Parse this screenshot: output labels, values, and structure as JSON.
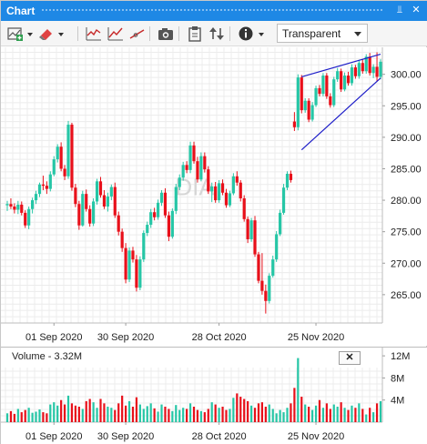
{
  "window": {
    "title": "Chart",
    "pin_glyph": "⫫",
    "close_glyph": "✕"
  },
  "toolbar": {
    "icons": [
      "add-indicator-icon",
      "eraser-icon",
      "line-chart-icon",
      "trend-chart-icon",
      "draw-line-icon",
      "camera-icon",
      "clipboard-icon",
      "sort-arrows-icon",
      "info-icon"
    ],
    "theme_select": "Transparent"
  },
  "volume_pane": {
    "label": "Volume - 3.32M",
    "close_glyph": "✕"
  },
  "watermark": "DIA",
  "colors": {
    "up": "#26c6a6",
    "down": "#e8101a",
    "trendline": "#1e1ec8",
    "titlebar": "#1e88e5"
  },
  "chart_data": [
    {
      "type": "candlestick",
      "symbol_watermark": "DIA",
      "x_tick_labels": [
        "01 Sep 2020",
        "30 Sep 2020",
        "28 Oct 2020",
        "25 Nov 2020"
      ],
      "y_tick_labels": [
        "265.00",
        "270.00",
        "275.00",
        "280.00",
        "285.00",
        "290.00",
        "295.00",
        "300.00"
      ],
      "ylim": [
        260.5,
        304
      ],
      "candles": [
        [
          279.2,
          279.9,
          278.3,
          279.4
        ],
        [
          279.4,
          280.3,
          278.6,
          279.0
        ],
        [
          279.0,
          279.5,
          277.9,
          278.5
        ],
        [
          278.5,
          279.9,
          277.8,
          279.3
        ],
        [
          279.3,
          279.8,
          277.6,
          278.0
        ],
        [
          278.0,
          278.4,
          275.6,
          276.0
        ],
        [
          276.0,
          279.0,
          275.4,
          278.6
        ],
        [
          278.6,
          280.4,
          277.9,
          280.0
        ],
        [
          280.0,
          281.5,
          279.4,
          281.0
        ],
        [
          281.0,
          282.8,
          280.5,
          282.5
        ],
        [
          282.5,
          283.9,
          281.6,
          282.3
        ],
        [
          282.3,
          283.0,
          281.0,
          281.8
        ],
        [
          281.8,
          284.6,
          281.4,
          284.1
        ],
        [
          284.1,
          287.0,
          283.8,
          286.5
        ],
        [
          286.5,
          288.9,
          286.0,
          288.5
        ],
        [
          288.5,
          289.2,
          284.6,
          285.0
        ],
        [
          285.0,
          285.6,
          283.2,
          283.8
        ],
        [
          283.8,
          292.6,
          283.4,
          292.0
        ],
        [
          292.0,
          292.3,
          281.5,
          282.0
        ],
        [
          282.0,
          282.6,
          278.9,
          279.4
        ],
        [
          279.4,
          279.9,
          275.3,
          276.0
        ],
        [
          276.0,
          281.5,
          275.8,
          281.0
        ],
        [
          281.0,
          281.7,
          278.2,
          278.6
        ],
        [
          278.6,
          279.2,
          275.8,
          276.3
        ],
        [
          276.3,
          280.3,
          275.9,
          279.8
        ],
        [
          279.8,
          283.4,
          279.3,
          283.0
        ],
        [
          283.0,
          283.7,
          280.4,
          280.8
        ],
        [
          280.8,
          281.6,
          278.6,
          279.0
        ],
        [
          279.0,
          281.2,
          278.2,
          280.6
        ],
        [
          280.6,
          282.5,
          280.0,
          282.1
        ],
        [
          282.1,
          282.8,
          277.2,
          277.6
        ],
        [
          277.6,
          278.2,
          274.4,
          275.0
        ],
        [
          275.0,
          275.5,
          271.8,
          272.4
        ],
        [
          272.4,
          273.2,
          266.8,
          267.4
        ],
        [
          267.4,
          272.5,
          267.0,
          272.0
        ],
        [
          272.0,
          272.6,
          270.1,
          270.6
        ],
        [
          270.6,
          271.3,
          265.5,
          266.1
        ],
        [
          266.1,
          271.1,
          265.7,
          270.6
        ],
        [
          270.6,
          275.2,
          270.2,
          274.8
        ],
        [
          274.8,
          276.6,
          274.3,
          276.1
        ],
        [
          276.1,
          278.6,
          275.6,
          278.1
        ],
        [
          278.1,
          278.8,
          276.8,
          277.3
        ],
        [
          277.3,
          280.1,
          276.9,
          279.6
        ],
        [
          279.6,
          281.6,
          279.1,
          281.2
        ],
        [
          281.2,
          281.9,
          277.2,
          277.6
        ],
        [
          277.6,
          278.2,
          273.5,
          274.2
        ],
        [
          274.2,
          278.7,
          273.9,
          278.3
        ],
        [
          278.3,
          282.6,
          277.8,
          282.1
        ],
        [
          282.1,
          284.1,
          281.6,
          283.6
        ],
        [
          283.6,
          286.1,
          283.1,
          285.6
        ],
        [
          285.6,
          286.2,
          284.3,
          284.8
        ],
        [
          284.8,
          289.3,
          284.3,
          288.7
        ],
        [
          288.7,
          289.3,
          285.8,
          286.2
        ],
        [
          286.2,
          286.9,
          282.8,
          283.3
        ],
        [
          283.3,
          287.6,
          283.0,
          287.0
        ],
        [
          287.0,
          287.6,
          284.4,
          284.9
        ],
        [
          284.9,
          285.4,
          281.0,
          281.4
        ],
        [
          281.4,
          282.8,
          279.7,
          282.2
        ],
        [
          282.2,
          282.9,
          279.6,
          280.0
        ],
        [
          280.0,
          283.2,
          279.6,
          282.7
        ],
        [
          282.7,
          283.3,
          280.8,
          281.2
        ],
        [
          281.2,
          281.8,
          278.8,
          279.2
        ],
        [
          279.2,
          281.5,
          278.9,
          281.1
        ],
        [
          281.1,
          284.3,
          280.8,
          283.8
        ],
        [
          283.8,
          284.6,
          282.3,
          282.8
        ],
        [
          282.8,
          283.2,
          279.8,
          280.3
        ],
        [
          280.3,
          280.8,
          276.6,
          277.0
        ],
        [
          277.0,
          277.4,
          273.2,
          273.8
        ],
        [
          273.8,
          277.2,
          273.4,
          276.8
        ],
        [
          276.8,
          277.5,
          271.0,
          271.4
        ],
        [
          271.4,
          271.8,
          266.8,
          267.2
        ],
        [
          267.2,
          271.6,
          265.0,
          265.6
        ],
        [
          265.6,
          266.6,
          262.0,
          264.0
        ],
        [
          264.0,
          268.4,
          263.6,
          268.0
        ],
        [
          268.0,
          271.2,
          267.7,
          270.6
        ],
        [
          270.6,
          275.1,
          270.2,
          274.6
        ],
        [
          274.6,
          278.5,
          274.3,
          278.0
        ],
        [
          278.0,
          282.6,
          277.7,
          282.0
        ],
        [
          282.0,
          284.6,
          281.6,
          284.2
        ],
        [
          284.2,
          284.7,
          282.8,
          283.2
        ],
        [
          292.5,
          294.0,
          291.0,
          291.6
        ],
        [
          291.6,
          300.0,
          291.1,
          299.5
        ],
        [
          299.5,
          299.9,
          293.8,
          294.3
        ],
        [
          294.3,
          296.2,
          293.9,
          295.8
        ],
        [
          295.8,
          296.2,
          292.4,
          292.8
        ],
        [
          292.8,
          295.6,
          292.5,
          295.1
        ],
        [
          295.1,
          298.2,
          294.8,
          297.8
        ],
        [
          297.8,
          298.3,
          296.5,
          296.9
        ],
        [
          296.9,
          300.2,
          296.5,
          299.8
        ],
        [
          299.8,
          300.2,
          296.1,
          296.5
        ],
        [
          296.5,
          297.0,
          294.7,
          295.1
        ],
        [
          295.1,
          299.6,
          294.8,
          299.2
        ],
        [
          299.2,
          301.0,
          298.8,
          300.5
        ],
        [
          300.5,
          300.9,
          297.2,
          297.6
        ],
        [
          297.6,
          300.3,
          297.3,
          299.8
        ],
        [
          299.8,
          300.4,
          298.2,
          298.6
        ],
        [
          298.6,
          301.6,
          298.2,
          301.1
        ],
        [
          301.1,
          301.5,
          299.3,
          299.7
        ],
        [
          299.7,
          302.3,
          299.3,
          301.8
        ],
        [
          301.8,
          302.4,
          300.1,
          300.5
        ],
        [
          300.5,
          303.2,
          300.1,
          302.8
        ],
        [
          302.8,
          303.4,
          299.8,
          300.2
        ],
        [
          300.2,
          301.6,
          299.4,
          301.2
        ],
        [
          301.2,
          303.5,
          298.8,
          299.6
        ],
        [
          299.6,
          302.4,
          299.2,
          302.0
        ]
      ],
      "trendlines": [
        {
          "from": [
            82,
            299.6
          ],
          "to": [
            104,
            303.2
          ]
        },
        {
          "from": [
            82,
            288.0
          ],
          "to": [
            104,
            299.4
          ]
        }
      ]
    },
    {
      "type": "bar",
      "title": "Volume - 3.32M",
      "y_tick_labels": [
        "12M",
        "8M",
        "4M"
      ],
      "ylim": [
        0,
        13.5
      ],
      "values": [
        1.6,
        2.0,
        1.5,
        2.4,
        1.8,
        2.2,
        2.6,
        1.7,
        1.9,
        2.3,
        1.8,
        1.6,
        3.2,
        3.6,
        3.0,
        4.0,
        3.2,
        4.8,
        3.4,
        3.0,
        2.8,
        2.4,
        3.8,
        4.2,
        3.6,
        2.6,
        4.2,
        3.4,
        2.8,
        2.6,
        2.2,
        3.4,
        4.8,
        3.0,
        3.8,
        2.8,
        4.5,
        3.2,
        2.4,
        2.9,
        3.4,
        2.5,
        1.9,
        3.2,
        2.8,
        2.4,
        2.0,
        3.1,
        2.2,
        2.6,
        2.4,
        3.4,
        2.8,
        2.2,
        2.0,
        1.8,
        2.4,
        3.6,
        3.2,
        2.6,
        2.8,
        2.2,
        2.4,
        4.4,
        5.2,
        4.6,
        4.2,
        3.8,
        3.0,
        2.6,
        3.4,
        3.6,
        2.8,
        3.2,
        2.4,
        1.6,
        2.2,
        1.8,
        2.6,
        3.4,
        6.2,
        11.6,
        4.6,
        3.2,
        2.8,
        2.2,
        3.0,
        4.0,
        2.6,
        3.4,
        2.4,
        3.2,
        2.8,
        3.6,
        2.6,
        2.2,
        3.0,
        2.6,
        3.4,
        2.4,
        1.4,
        2.6,
        1.8,
        3.4,
        3.8
      ]
    }
  ]
}
